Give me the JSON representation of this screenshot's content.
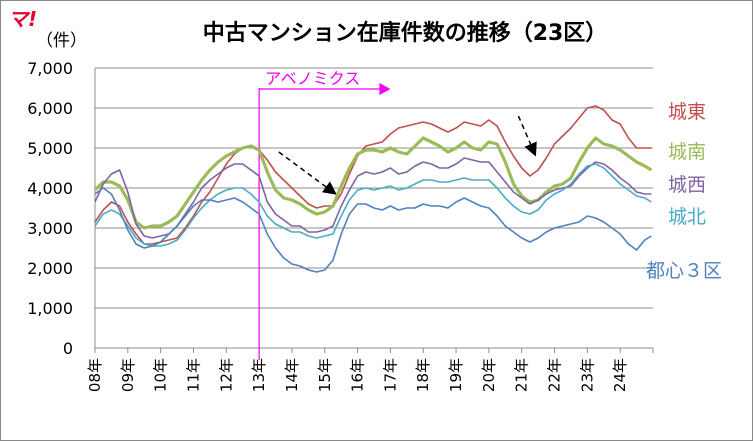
{
  "logo": "マ!",
  "chart_data": {
    "type": "line",
    "title": "中古マンション在庫件数の推移（23区）",
    "ylabel": "（件）",
    "xlabel": "",
    "ylim": [
      0,
      7000
    ],
    "yticks": [
      0,
      1000,
      2000,
      3000,
      4000,
      5000,
      6000,
      7000
    ],
    "ytick_labels": [
      "0",
      "1,000",
      "2,000",
      "3,000",
      "4,000",
      "5,000",
      "6,000",
      "7,000"
    ],
    "xlim": [
      2008,
      2025
    ],
    "x_categories": [
      "08年",
      "09年",
      "10年",
      "11年",
      "12年",
      "13年",
      "14年",
      "15年",
      "16年",
      "17年",
      "18年",
      "19年",
      "20年",
      "21年",
      "22年",
      "23年",
      "24年"
    ],
    "grid": true,
    "legend": "labels at right end of lines",
    "annotations": [
      {
        "text": "アベノミクス",
        "x": 2013.0,
        "x_end": 2017.0,
        "color": "#ee00ee",
        "type": "vertical-line-with-arrow"
      },
      {
        "type": "dashed-arrow",
        "from": [
          2013.6,
          4900
        ],
        "to": [
          2015.3,
          3870
        ],
        "color": "#000000"
      },
      {
        "type": "dashed-arrow",
        "from": [
          2020.9,
          5800
        ],
        "to": [
          2021.4,
          4850
        ],
        "color": "#000000"
      }
    ],
    "series": [
      {
        "name": "城東",
        "color": "#c0504d",
        "width": 1.6,
        "x": [
          2008.0,
          2008.25,
          2008.5,
          2008.75,
          2009.0,
          2009.25,
          2009.5,
          2009.75,
          2010.0,
          2010.25,
          2010.5,
          2010.75,
          2011.0,
          2011.25,
          2011.5,
          2011.75,
          2012.0,
          2012.25,
          2012.5,
          2012.75,
          2013.0,
          2013.25,
          2013.5,
          2013.75,
          2014.0,
          2014.25,
          2014.5,
          2014.75,
          2015.0,
          2015.25,
          2015.5,
          2015.75,
          2016.0,
          2016.25,
          2016.5,
          2016.75,
          2017.0,
          2017.25,
          2017.5,
          2017.75,
          2018.0,
          2018.25,
          2018.5,
          2018.75,
          2019.0,
          2019.25,
          2019.5,
          2019.75,
          2020.0,
          2020.25,
          2020.5,
          2020.75,
          2021.0,
          2021.25,
          2021.5,
          2021.75,
          2022.0,
          2022.25,
          2022.5,
          2022.75,
          2023.0,
          2023.25,
          2023.5,
          2023.75,
          2024.0,
          2024.25,
          2024.5,
          2024.75,
          2024.95
        ],
        "y": [
          3150,
          3450,
          3650,
          3550,
          3150,
          2850,
          2600,
          2600,
          2650,
          2700,
          2750,
          3000,
          3300,
          3650,
          3900,
          4250,
          4600,
          4850,
          5000,
          5050,
          4950,
          4700,
          4400,
          4200,
          4000,
          3800,
          3600,
          3500,
          3550,
          3550,
          3850,
          4350,
          4800,
          5050,
          5100,
          5150,
          5350,
          5500,
          5550,
          5600,
          5650,
          5600,
          5500,
          5400,
          5500,
          5650,
          5600,
          5550,
          5700,
          5550,
          5150,
          4800,
          4500,
          4300,
          4450,
          4750,
          5100,
          5300,
          5500,
          5750,
          6000,
          6050,
          5950,
          5700,
          5600,
          5250,
          5000,
          5000,
          5000
        ]
      },
      {
        "name": "城南",
        "color": "#9bbb59",
        "width": 3.2,
        "x": [
          2008.0,
          2008.25,
          2008.5,
          2008.75,
          2009.0,
          2009.25,
          2009.5,
          2009.75,
          2010.0,
          2010.25,
          2010.5,
          2010.75,
          2011.0,
          2011.25,
          2011.5,
          2011.75,
          2012.0,
          2012.25,
          2012.5,
          2012.75,
          2013.0,
          2013.25,
          2013.5,
          2013.75,
          2014.0,
          2014.25,
          2014.5,
          2014.75,
          2015.0,
          2015.25,
          2015.5,
          2015.75,
          2016.0,
          2016.25,
          2016.5,
          2016.75,
          2017.0,
          2017.25,
          2017.5,
          2017.75,
          2018.0,
          2018.25,
          2018.5,
          2018.75,
          2019.0,
          2019.25,
          2019.5,
          2019.75,
          2020.0,
          2020.25,
          2020.5,
          2020.75,
          2021.0,
          2021.25,
          2021.5,
          2021.75,
          2022.0,
          2022.25,
          2022.5,
          2022.75,
          2023.0,
          2023.25,
          2023.5,
          2023.75,
          2024.0,
          2024.25,
          2024.5,
          2024.75,
          2024.95
        ],
        "y": [
          3950,
          4150,
          4150,
          4050,
          3700,
          3150,
          3000,
          3050,
          3050,
          3150,
          3300,
          3600,
          3900,
          4200,
          4450,
          4650,
          4800,
          4900,
          5000,
          5050,
          4950,
          4400,
          3950,
          3750,
          3700,
          3600,
          3450,
          3350,
          3400,
          3550,
          4050,
          4500,
          4850,
          4950,
          4950,
          4900,
          5000,
          4900,
          4850,
          5050,
          5250,
          5150,
          5050,
          4900,
          5000,
          5150,
          5000,
          4950,
          5150,
          5100,
          4650,
          4100,
          3800,
          3650,
          3700,
          3900,
          4050,
          4100,
          4250,
          4650,
          5000,
          5250,
          5100,
          5050,
          4950,
          4800,
          4650,
          4550,
          4450
        ]
      },
      {
        "name": "城西",
        "color": "#8064a2",
        "width": 1.6,
        "x": [
          2008.0,
          2008.25,
          2008.5,
          2008.75,
          2009.0,
          2009.25,
          2009.5,
          2009.75,
          2010.0,
          2010.25,
          2010.5,
          2010.75,
          2011.0,
          2011.25,
          2011.5,
          2011.75,
          2012.0,
          2012.25,
          2012.5,
          2012.75,
          2013.0,
          2013.25,
          2013.5,
          2013.75,
          2014.0,
          2014.25,
          2014.5,
          2014.75,
          2015.0,
          2015.25,
          2015.5,
          2015.75,
          2016.0,
          2016.25,
          2016.5,
          2016.75,
          2017.0,
          2017.25,
          2017.5,
          2017.75,
          2018.0,
          2018.25,
          2018.5,
          2018.75,
          2019.0,
          2019.25,
          2019.5,
          2019.75,
          2020.0,
          2020.25,
          2020.5,
          2020.75,
          2021.0,
          2021.25,
          2021.5,
          2021.75,
          2022.0,
          2022.25,
          2022.5,
          2022.75,
          2023.0,
          2023.25,
          2023.5,
          2023.75,
          2024.0,
          2024.25,
          2024.5,
          2024.75,
          2024.95
        ],
        "y": [
          3650,
          4100,
          4350,
          4450,
          3900,
          3100,
          2800,
          2750,
          2800,
          2850,
          3050,
          3350,
          3650,
          4000,
          4200,
          4350,
          4500,
          4600,
          4600,
          4450,
          4300,
          3650,
          3350,
          3200,
          3050,
          3050,
          2900,
          2900,
          2950,
          3050,
          3550,
          3950,
          4300,
          4400,
          4350,
          4400,
          4500,
          4350,
          4400,
          4550,
          4650,
          4600,
          4500,
          4500,
          4600,
          4750,
          4700,
          4650,
          4650,
          4400,
          4150,
          3900,
          3750,
          3600,
          3700,
          3850,
          3950,
          4000,
          4050,
          4300,
          4500,
          4650,
          4600,
          4450,
          4250,
          4100,
          3900,
          3850,
          3850
        ]
      },
      {
        "name": "城北",
        "color": "#4bacc6",
        "width": 1.6,
        "x": [
          2008.0,
          2008.25,
          2008.5,
          2008.75,
          2009.0,
          2009.25,
          2009.5,
          2009.75,
          2010.0,
          2010.25,
          2010.5,
          2010.75,
          2011.0,
          2011.25,
          2011.5,
          2011.75,
          2012.0,
          2012.25,
          2012.5,
          2012.75,
          2013.0,
          2013.25,
          2013.5,
          2013.75,
          2014.0,
          2014.25,
          2014.5,
          2014.75,
          2015.0,
          2015.25,
          2015.5,
          2015.75,
          2016.0,
          2016.25,
          2016.5,
          2016.75,
          2017.0,
          2017.25,
          2017.5,
          2017.75,
          2018.0,
          2018.25,
          2018.5,
          2018.75,
          2019.0,
          2019.25,
          2019.5,
          2019.75,
          2020.0,
          2020.25,
          2020.5,
          2020.75,
          2021.0,
          2021.25,
          2021.5,
          2021.75,
          2022.0,
          2022.25,
          2022.5,
          2022.75,
          2023.0,
          2023.25,
          2023.5,
          2023.75,
          2024.0,
          2024.25,
          2024.5,
          2024.75,
          2024.95
        ],
        "y": [
          3050,
          3350,
          3450,
          3350,
          3050,
          2750,
          2600,
          2550,
          2550,
          2600,
          2700,
          2950,
          3250,
          3500,
          3700,
          3850,
          3950,
          4000,
          4000,
          3850,
          3650,
          3300,
          3100,
          3000,
          2900,
          2900,
          2800,
          2750,
          2800,
          2850,
          3300,
          3700,
          3950,
          4000,
          3950,
          4000,
          4050,
          3950,
          4000,
          4100,
          4200,
          4200,
          4150,
          4150,
          4200,
          4250,
          4200,
          4200,
          4200,
          4000,
          3750,
          3550,
          3400,
          3350,
          3450,
          3700,
          3850,
          3950,
          4100,
          4350,
          4550,
          4600,
          4500,
          4300,
          4100,
          3950,
          3800,
          3750,
          3650
        ]
      },
      {
        "name": "都心３区",
        "color": "#4f81bd",
        "width": 1.6,
        "x": [
          2008.0,
          2008.25,
          2008.5,
          2008.75,
          2009.0,
          2009.25,
          2009.5,
          2009.75,
          2010.0,
          2010.25,
          2010.5,
          2010.75,
          2011.0,
          2011.25,
          2011.5,
          2011.75,
          2012.0,
          2012.25,
          2012.5,
          2012.75,
          2013.0,
          2013.25,
          2013.5,
          2013.75,
          2014.0,
          2014.25,
          2014.5,
          2014.75,
          2015.0,
          2015.25,
          2015.5,
          2015.75,
          2016.0,
          2016.25,
          2016.5,
          2016.75,
          2017.0,
          2017.25,
          2017.5,
          2017.75,
          2018.0,
          2018.25,
          2018.5,
          2018.75,
          2019.0,
          2019.25,
          2019.5,
          2019.75,
          2020.0,
          2020.25,
          2020.5,
          2020.75,
          2021.0,
          2021.25,
          2021.5,
          2021.75,
          2022.0,
          2022.25,
          2022.5,
          2022.75,
          2023.0,
          2023.25,
          2023.5,
          2023.75,
          2024.0,
          2024.25,
          2024.5,
          2024.75,
          2024.95
        ],
        "y": [
          3850,
          4000,
          3850,
          3450,
          2950,
          2600,
          2500,
          2550,
          2650,
          2850,
          3050,
          3300,
          3550,
          3700,
          3700,
          3650,
          3700,
          3750,
          3650,
          3500,
          3350,
          2850,
          2500,
          2250,
          2100,
          2050,
          1950,
          1900,
          1950,
          2200,
          2850,
          3350,
          3600,
          3600,
          3500,
          3450,
          3550,
          3450,
          3500,
          3500,
          3600,
          3550,
          3550,
          3500,
          3650,
          3750,
          3650,
          3550,
          3500,
          3300,
          3050,
          2900,
          2750,
          2650,
          2750,
          2900,
          3000,
          3050,
          3100,
          3150,
          3300,
          3250,
          3150,
          3000,
          2850,
          2600,
          2450,
          2700,
          2800
        ]
      }
    ]
  }
}
